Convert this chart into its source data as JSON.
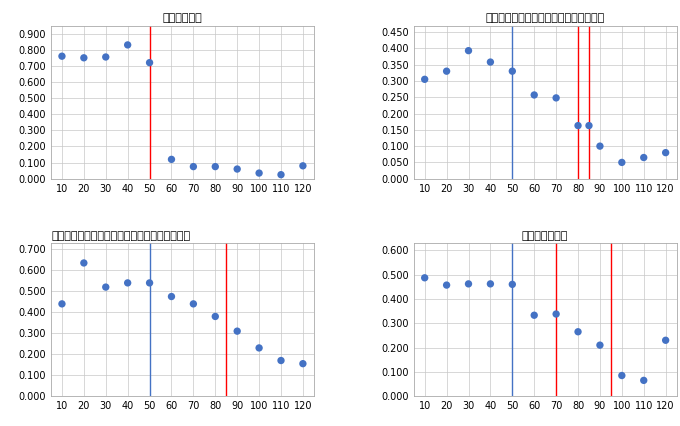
{
  "x": [
    10,
    20,
    30,
    40,
    50,
    60,
    70,
    80,
    90,
    100,
    110,
    120
  ],
  "panel1": {
    "title": "持続化給付金",
    "y": [
      0.76,
      0.75,
      0.755,
      0.83,
      0.72,
      0.12,
      0.075,
      0.075,
      0.06,
      0.035,
      0.025,
      0.08
    ],
    "x_vals": [
      10,
      20,
      30,
      40,
      50,
      60,
      70,
      80,
      90,
      100,
      110,
      120
    ],
    "vlines_red": [
      50
    ],
    "vlines_blue": [],
    "ylim": [
      0.0,
      0.95
    ],
    "yticks": [
      0.0,
      0.1,
      0.2,
      0.3,
      0.4,
      0.5,
      0.6,
      0.7,
      0.8,
      0.9
    ],
    "title_loc": "center"
  },
  "panel2": {
    "title": "政府系金融機関による無利子無担保融資",
    "y": [
      0.305,
      0.33,
      0.393,
      0.358,
      0.33,
      0.257,
      0.248,
      0.163,
      0.163,
      0.1,
      0.05,
      0.065,
      0.08
    ],
    "x_vals": [
      10,
      20,
      30,
      40,
      50,
      60,
      70,
      80,
      85,
      90,
      100,
      110,
      120
    ],
    "vlines_red": [
      80,
      85
    ],
    "vlines_blue": [
      50
    ],
    "ylim": [
      0.0,
      0.47
    ],
    "yticks": [
      0.0,
      0.05,
      0.1,
      0.15,
      0.2,
      0.25,
      0.3,
      0.35,
      0.4,
      0.45
    ],
    "title_loc": "center"
  },
  "panel3": {
    "title": "民間金融機関を通じた無利子無担保の制度融資",
    "y": [
      0.44,
      0.635,
      0.52,
      0.54,
      0.54,
      0.475,
      0.44,
      0.38,
      0.31,
      0.23,
      0.17,
      0.155
    ],
    "x_vals": [
      10,
      20,
      30,
      40,
      50,
      60,
      70,
      80,
      90,
      100,
      110,
      120
    ],
    "vlines_red": [
      85
    ],
    "vlines_blue": [
      50
    ],
    "ylim": [
      0.0,
      0.73
    ],
    "yticks": [
      0.0,
      0.1,
      0.2,
      0.3,
      0.4,
      0.5,
      0.6,
      0.7
    ],
    "title_loc": "left"
  },
  "panel4": {
    "title": "雇用調整助成金",
    "y": [
      0.487,
      0.457,
      0.462,
      0.462,
      0.46,
      0.333,
      0.338,
      0.265,
      0.21,
      0.085,
      0.065,
      0.23
    ],
    "x_vals": [
      10,
      20,
      30,
      40,
      50,
      60,
      70,
      80,
      90,
      100,
      110,
      120
    ],
    "vlines_red": [
      70,
      95
    ],
    "vlines_blue": [
      50
    ],
    "ylim": [
      0.0,
      0.63
    ],
    "yticks": [
      0.0,
      0.1,
      0.2,
      0.3,
      0.4,
      0.5,
      0.6
    ],
    "title_loc": "center"
  },
  "dot_color": "#4472c4",
  "dot_size": 28,
  "red_line_color": "#ff0000",
  "blue_line_color": "#4472c4",
  "grid_color": "#c8c8c8",
  "bg_color": "#ffffff",
  "font_size_title": 8,
  "font_size_tick": 7
}
